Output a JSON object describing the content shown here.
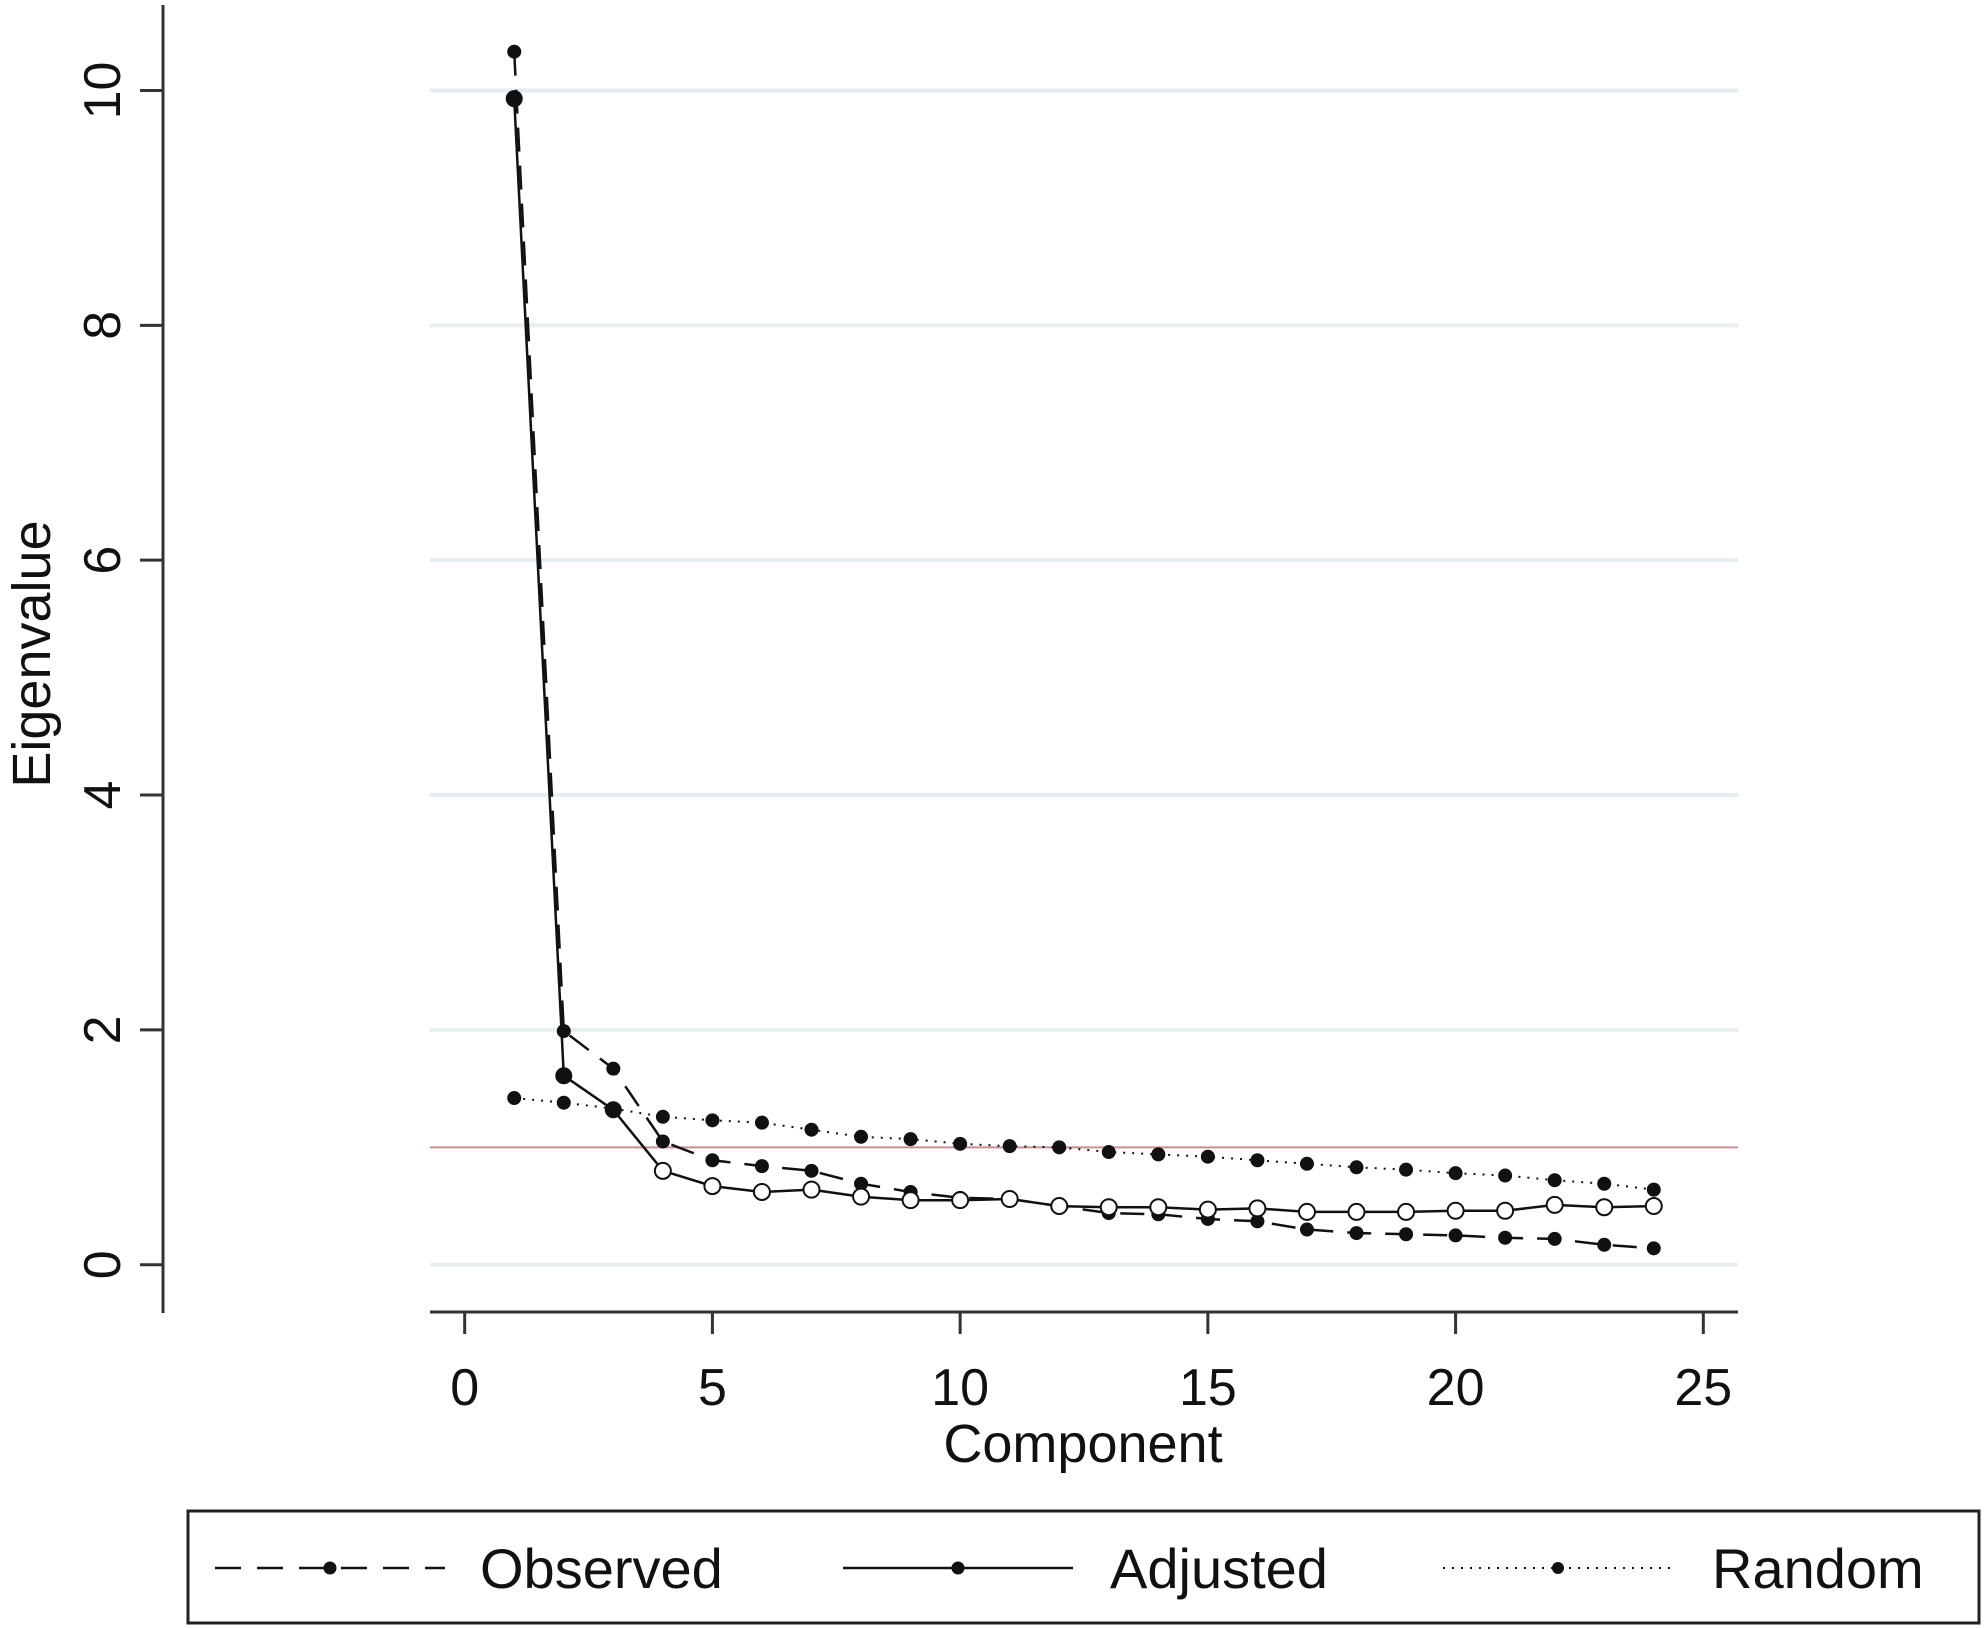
{
  "chart_data": {
    "type": "line",
    "xlabel": "Component",
    "ylabel": "Eigenvalue",
    "xlim": [
      -0.7,
      25.7
    ],
    "ylim": [
      -0.3,
      10.6
    ],
    "xticks": [
      0,
      5,
      10,
      15,
      20,
      25
    ],
    "yticks": [
      0,
      2,
      4,
      6,
      8,
      10
    ],
    "grid": "horizontal",
    "reference_line_y": 1,
    "legend_position": "bottom",
    "colors": {
      "series": "#111111",
      "grid": "#e6eef2",
      "reference_line": "#c98f8f",
      "axis": "#333333"
    },
    "x": [
      1,
      2,
      3,
      4,
      5,
      6,
      7,
      8,
      9,
      10,
      11,
      12,
      13,
      14,
      15,
      16,
      17,
      18,
      19,
      20,
      21,
      22,
      23,
      24
    ],
    "series": [
      {
        "name": "Observed",
        "style": "dashed",
        "values": [
          10.33,
          1.99,
          1.67,
          1.05,
          0.89,
          0.84,
          0.8,
          0.69,
          0.62,
          0.57,
          0.56,
          0.5,
          0.44,
          0.43,
          0.39,
          0.37,
          0.3,
          0.27,
          0.26,
          0.25,
          0.23,
          0.22,
          0.17,
          0.14
        ]
      },
      {
        "name": "Adjusted",
        "style": "solid",
        "values": [
          9.93,
          1.61,
          1.32,
          0.8,
          0.67,
          0.62,
          0.64,
          0.58,
          0.55,
          0.55,
          0.56,
          0.5,
          0.49,
          0.49,
          0.47,
          0.48,
          0.45,
          0.45,
          0.45,
          0.46,
          0.46,
          0.51,
          0.49,
          0.5
        ],
        "open_markers_from_index": 3
      },
      {
        "name": "Random",
        "style": "dotted",
        "values": [
          1.42,
          1.38,
          1.33,
          1.26,
          1.23,
          1.21,
          1.15,
          1.09,
          1.07,
          1.03,
          1.01,
          1.0,
          0.96,
          0.94,
          0.92,
          0.89,
          0.86,
          0.83,
          0.81,
          0.78,
          0.76,
          0.72,
          0.69,
          0.64
        ]
      }
    ]
  }
}
